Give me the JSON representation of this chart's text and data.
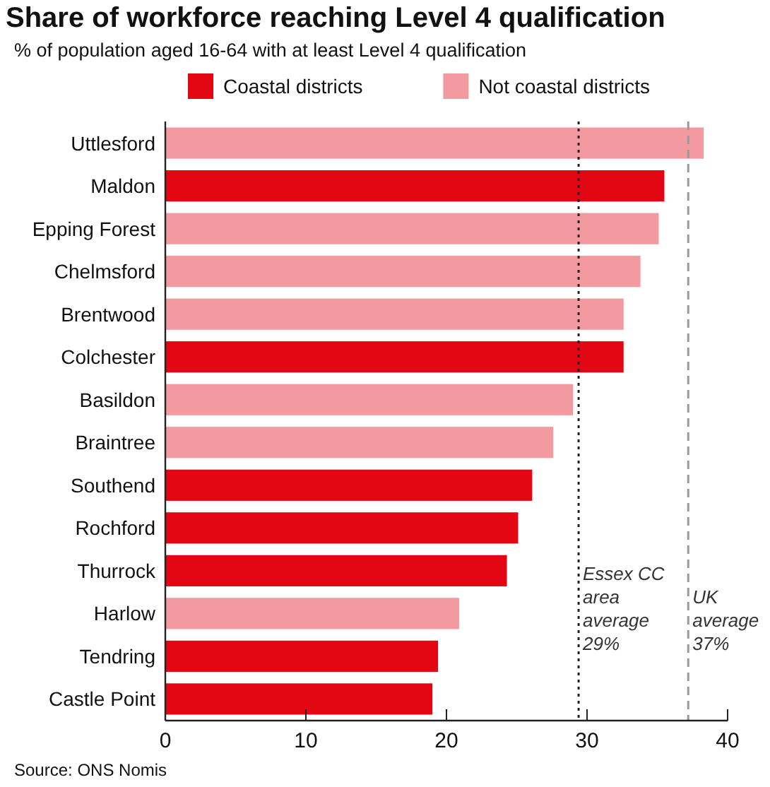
{
  "chart_data": {
    "type": "bar",
    "orientation": "horizontal",
    "stacked": true,
    "title": "Share of workforce reaching Level 4 qualification",
    "subtitle": "% of population aged 16-64 with at least Level 4 qualification",
    "categories": [
      "Uttlesford",
      "Maldon",
      "Epping Forest",
      "Chelmsford",
      "Brentwood",
      "Colchester",
      "Basildon",
      "Braintree",
      "Southend",
      "Rochford",
      "Thurrock",
      "Harlow",
      "Tendring",
      "Castle Point"
    ],
    "series": [
      {
        "name": "Coastal districts",
        "color": "#e30613",
        "values": [
          null,
          35.5,
          null,
          null,
          null,
          32.6,
          null,
          null,
          26.1,
          25.1,
          24.3,
          null,
          19.4,
          19.0
        ]
      },
      {
        "name": "Not coastal districts",
        "color": "#f29aa0",
        "values": [
          38.3,
          null,
          35.1,
          33.8,
          32.6,
          null,
          29.0,
          27.6,
          null,
          null,
          null,
          20.9,
          null,
          null
        ]
      }
    ],
    "xlim": [
      0,
      40
    ],
    "xticks": [
      0,
      10,
      20,
      30,
      40
    ],
    "ref_lines": [
      {
        "axis": "x",
        "value": 29.4,
        "label": "Essex CC\narea\naverage\n29%",
        "line_style": "dotted",
        "color": "#222222"
      },
      {
        "axis": "x",
        "value": 37.2,
        "label": "UK\naverage\n37%",
        "line_style": "dashed",
        "color": "#9a9a9a"
      }
    ],
    "legend": "top",
    "annotations": [
      "Source: ONS Nomis"
    ]
  }
}
